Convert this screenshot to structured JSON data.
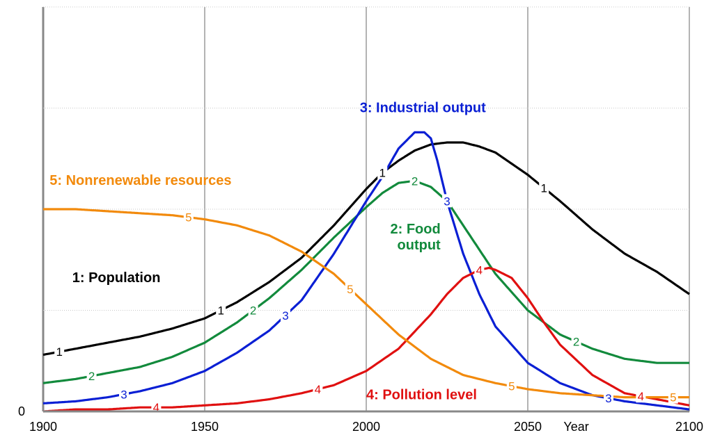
{
  "chart_data": {
    "type": "line",
    "title": "",
    "xlabel": "Year",
    "ylabel": "",
    "xlim": [
      1900,
      2100
    ],
    "ylim": [
      0,
      100
    ],
    "grid": true,
    "x_ticks": [
      "1900",
      "1950",
      "2000",
      "2050",
      "2100"
    ],
    "y_ticks": [
      "0"
    ],
    "series": [
      {
        "id": "population",
        "number": "1",
        "name": "1: Population",
        "color": "#000000",
        "x": [
          1900,
          1910,
          1920,
          1930,
          1940,
          1950,
          1960,
          1970,
          1980,
          1990,
          2000,
          2005,
          2010,
          2015,
          2020,
          2025,
          2030,
          2035,
          2040,
          2050,
          2060,
          2070,
          2080,
          2090,
          2100
        ],
        "values": [
          14,
          15.5,
          17,
          18.5,
          20.5,
          23,
          27,
          32,
          38,
          46,
          55,
          59,
          62,
          64.5,
          66,
          66.5,
          66.5,
          65.5,
          64,
          58.5,
          52,
          45,
          39,
          34.5,
          29
        ]
      },
      {
        "id": "food",
        "number": "2",
        "name": "2: Food output",
        "color": "#128a3c",
        "x": [
          1900,
          1910,
          1920,
          1930,
          1940,
          1950,
          1960,
          1970,
          1980,
          1990,
          2000,
          2005,
          2010,
          2015,
          2020,
          2025,
          2030,
          2040,
          2050,
          2060,
          2070,
          2080,
          2090,
          2100
        ],
        "values": [
          7,
          8,
          9.5,
          11,
          13.5,
          17,
          22,
          28,
          35,
          43,
          50.5,
          54,
          56.5,
          57,
          55.5,
          52,
          46,
          34,
          25,
          19,
          15.5,
          13,
          12,
          12
        ]
      },
      {
        "id": "industrial",
        "number": "3",
        "name": "3: Industrial output",
        "color": "#0a1fd4",
        "x": [
          1900,
          1910,
          1920,
          1930,
          1940,
          1950,
          1960,
          1970,
          1980,
          1990,
          2000,
          2005,
          2010,
          2015,
          2018,
          2020,
          2022,
          2025,
          2030,
          2035,
          2040,
          2050,
          2060,
          2070,
          2080,
          2090,
          2100
        ],
        "values": [
          2,
          2.5,
          3.5,
          5,
          7,
          10,
          14.5,
          20,
          27.5,
          39,
          52,
          58,
          65,
          69,
          69,
          67.5,
          62,
          52,
          39,
          29,
          21,
          12,
          7,
          4,
          2.5,
          1.5,
          0.5
        ]
      },
      {
        "id": "pollution",
        "number": "4",
        "name": "4: Pollution level",
        "color": "#e01010",
        "x": [
          1900,
          1910,
          1920,
          1930,
          1940,
          1950,
          1960,
          1970,
          1980,
          1990,
          2000,
          2010,
          2020,
          2025,
          2030,
          2035,
          2038,
          2040,
          2045,
          2050,
          2055,
          2060,
          2070,
          2080,
          2090,
          2100
        ],
        "values": [
          0,
          0.5,
          0.5,
          1,
          1,
          1.5,
          2,
          3,
          4.5,
          6.5,
          10,
          15.5,
          24,
          29,
          33,
          35,
          35.5,
          35,
          33,
          28,
          22,
          16.5,
          9,
          4.5,
          3,
          1.5
        ]
      },
      {
        "id": "resources",
        "number": "5",
        "name": "5: Nonrenewable resources",
        "color": "#f28a0c",
        "x": [
          1900,
          1910,
          1920,
          1930,
          1940,
          1950,
          1960,
          1970,
          1980,
          1990,
          2000,
          2010,
          2020,
          2030,
          2040,
          2050,
          2060,
          2070,
          2080,
          2090,
          2100
        ],
        "values": [
          50,
          50,
          49.5,
          49,
          48.5,
          47.5,
          46,
          43.5,
          39.5,
          34,
          26.5,
          19,
          13,
          9,
          7,
          5.5,
          4.5,
          4,
          3.5,
          3.5,
          3.5
        ]
      }
    ],
    "markers": [
      {
        "series": "population",
        "x": [
          1905,
          1955,
          2005,
          2055
        ]
      },
      {
        "series": "food",
        "x": [
          1915,
          1965,
          2015,
          2065
        ]
      },
      {
        "series": "industrial",
        "x": [
          1925,
          1975,
          2025,
          2075
        ]
      },
      {
        "series": "pollution",
        "x": [
          1935,
          1985,
          2035,
          2085
        ]
      },
      {
        "series": "resources",
        "x": [
          1945,
          1995,
          2045,
          2095
        ]
      }
    ],
    "annotations": [
      {
        "series": "population",
        "lines": [
          "1: Population"
        ],
        "anchor": "start",
        "at_x": 1909,
        "at_y": 32
      },
      {
        "series": "food",
        "lines": [
          "2: Food",
          "output"
        ],
        "anchor": "end",
        "at_x": 2023,
        "at_y": 44
      },
      {
        "series": "industrial",
        "lines": [
          "3: Industrial output"
        ],
        "anchor": "start",
        "at_x": 1998,
        "at_y": 74
      },
      {
        "series": "pollution",
        "lines": [
          "4: Pollution level"
        ],
        "anchor": "start",
        "at_x": 2000,
        "at_y": 3
      },
      {
        "series": "resources",
        "lines": [
          "5: Nonrenewable resources"
        ],
        "anchor": "start",
        "at_x": 1902,
        "at_y": 56
      }
    ]
  }
}
